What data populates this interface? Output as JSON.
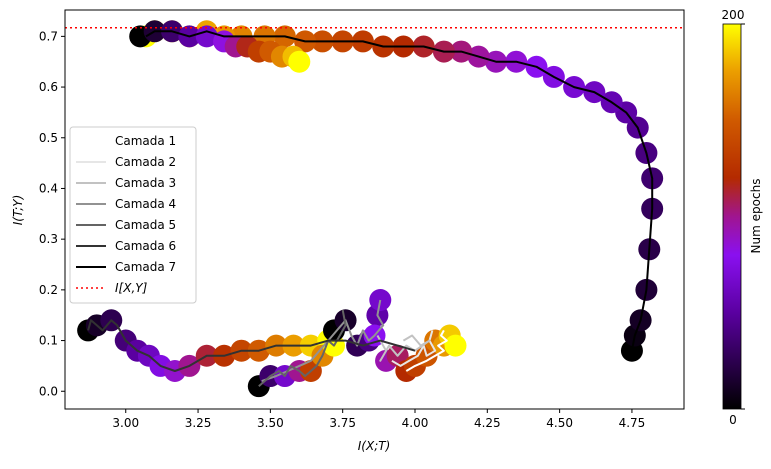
{
  "chart_data": {
    "type": "scatter",
    "title": "",
    "xlabel": "I(X;T)",
    "ylabel": "I(T;Y)",
    "xlim": [
      2.79,
      4.93
    ],
    "ylim": [
      -0.035,
      0.752
    ],
    "xticks": [
      3.0,
      3.25,
      3.5,
      3.75,
      4.0,
      4.25,
      4.5,
      4.75
    ],
    "xtick_labels": [
      "3.00",
      "3.25",
      "3.50",
      "3.75",
      "4.00",
      "4.25",
      "4.50",
      "4.75"
    ],
    "yticks": [
      0.0,
      0.1,
      0.2,
      0.3,
      0.4,
      0.5,
      0.6,
      0.7
    ],
    "ytick_labels": [
      "0.0",
      "0.1",
      "0.2",
      "0.3",
      "0.4",
      "0.5",
      "0.6",
      "0.7"
    ],
    "grid": false,
    "legend_position": "center-left",
    "hline": {
      "name": "I[X,Y]",
      "y": 0.717,
      "color": "#ff0000",
      "style": "dotted"
    },
    "colorbar": {
      "label": "Num epochs",
      "min": 0,
      "max": 200,
      "min_label": "0",
      "max_label": "200",
      "colormap": "gnuplot"
    },
    "series": [
      {
        "name": "Camada 1",
        "color": "#ffffff",
        "points": [
          [
            4.1,
            0.12
          ],
          [
            4.09,
            0.11
          ],
          [
            4.11,
            0.1
          ],
          [
            4.08,
            0.09
          ],
          [
            4.1,
            0.08
          ],
          [
            4.07,
            0.07
          ],
          [
            4.04,
            0.06
          ],
          [
            4.0,
            0.05
          ],
          [
            3.97,
            0.04
          ]
        ]
      },
      {
        "name": "Camada 2",
        "color": "#e6e6e6",
        "points": [
          [
            4.06,
            0.12
          ],
          [
            4.05,
            0.1
          ],
          [
            4.07,
            0.08
          ],
          [
            4.04,
            0.07
          ],
          [
            4.03,
            0.09
          ],
          [
            4.01,
            0.07
          ],
          [
            3.98,
            0.06
          ],
          [
            3.95,
            0.05
          ],
          [
            3.92,
            0.06
          ]
        ]
      },
      {
        "name": "Camada 3",
        "color": "#c2c2c2",
        "points": [
          [
            3.96,
            0.1
          ],
          [
            3.99,
            0.11
          ],
          [
            4.02,
            0.09
          ],
          [
            4.05,
            0.1
          ],
          [
            4.0,
            0.08
          ],
          [
            3.97,
            0.09
          ],
          [
            3.94,
            0.07
          ],
          [
            3.91,
            0.09
          ],
          [
            3.88,
            0.06
          ],
          [
            3.9,
            0.08
          ],
          [
            3.87,
            0.11
          ]
        ]
      },
      {
        "name": "Camada 4",
        "color": "#929292",
        "points": [
          [
            3.88,
            0.18
          ],
          [
            3.87,
            0.15
          ],
          [
            3.89,
            0.13
          ],
          [
            3.86,
            0.11
          ],
          [
            3.84,
            0.1
          ],
          [
            3.82,
            0.12
          ],
          [
            3.8,
            0.09
          ],
          [
            3.78,
            0.11
          ],
          [
            3.76,
            0.14
          ],
          [
            3.73,
            0.12
          ],
          [
            3.7,
            0.1
          ],
          [
            3.67,
            0.08
          ],
          [
            3.64,
            0.06
          ],
          [
            3.6,
            0.05
          ],
          [
            3.56,
            0.04
          ],
          [
            3.52,
            0.03
          ],
          [
            3.47,
            0.02
          ]
        ]
      },
      {
        "name": "Camada 5",
        "color": "#646464",
        "points": [
          [
            3.75,
            0.16
          ],
          [
            3.76,
            0.13
          ],
          [
            3.74,
            0.11
          ],
          [
            3.72,
            0.09
          ],
          [
            3.7,
            0.1
          ],
          [
            3.68,
            0.07
          ],
          [
            3.66,
            0.05
          ],
          [
            3.64,
            0.04
          ],
          [
            3.62,
            0.03
          ],
          [
            3.6,
            0.04
          ],
          [
            3.57,
            0.05
          ],
          [
            3.55,
            0.03
          ],
          [
            3.53,
            0.04
          ],
          [
            3.5,
            0.03
          ],
          [
            3.48,
            0.02
          ],
          [
            3.46,
            0.01
          ]
        ]
      },
      {
        "name": "Camada 6",
        "color": "#323232",
        "points": [
          [
            2.87,
            0.12
          ],
          [
            2.88,
            0.14
          ],
          [
            2.9,
            0.13
          ],
          [
            2.92,
            0.12
          ],
          [
            2.95,
            0.14
          ],
          [
            2.97,
            0.13
          ],
          [
            3.0,
            0.1
          ],
          [
            3.04,
            0.08
          ],
          [
            3.08,
            0.07
          ],
          [
            3.12,
            0.05
          ],
          [
            3.17,
            0.04
          ],
          [
            3.22,
            0.05
          ],
          [
            3.28,
            0.07
          ],
          [
            3.34,
            0.07
          ],
          [
            3.4,
            0.08
          ],
          [
            3.46,
            0.08
          ],
          [
            3.52,
            0.09
          ],
          [
            3.58,
            0.09
          ],
          [
            3.64,
            0.09
          ],
          [
            3.7,
            0.1
          ],
          [
            3.76,
            0.1
          ],
          [
            3.82,
            0.09
          ],
          [
            3.88,
            0.1
          ],
          [
            3.94,
            0.09
          ],
          [
            4.0,
            0.08
          ]
        ]
      },
      {
        "name": "Camada 7",
        "color": "#000000",
        "points": [
          [
            4.75,
            0.08
          ],
          [
            4.76,
            0.11
          ],
          [
            4.78,
            0.14
          ],
          [
            4.8,
            0.2
          ],
          [
            4.81,
            0.28
          ],
          [
            4.82,
            0.36
          ],
          [
            4.82,
            0.42
          ],
          [
            4.8,
            0.47
          ],
          [
            4.77,
            0.52
          ],
          [
            4.73,
            0.55
          ],
          [
            4.68,
            0.57
          ],
          [
            4.62,
            0.59
          ],
          [
            4.55,
            0.6
          ],
          [
            4.48,
            0.62
          ],
          [
            4.42,
            0.64
          ],
          [
            4.35,
            0.65
          ],
          [
            4.28,
            0.65
          ],
          [
            4.22,
            0.66
          ],
          [
            4.16,
            0.67
          ],
          [
            4.1,
            0.67
          ],
          [
            4.03,
            0.68
          ],
          [
            3.96,
            0.68
          ],
          [
            3.89,
            0.68
          ],
          [
            3.82,
            0.69
          ],
          [
            3.75,
            0.69
          ],
          [
            3.68,
            0.69
          ],
          [
            3.62,
            0.69
          ],
          [
            3.55,
            0.7
          ],
          [
            3.48,
            0.7
          ],
          [
            3.4,
            0.7
          ],
          [
            3.34,
            0.7
          ],
          [
            3.28,
            0.71
          ],
          [
            3.22,
            0.7
          ],
          [
            3.16,
            0.71
          ],
          [
            3.1,
            0.71
          ],
          [
            3.07,
            0.7
          ]
        ]
      }
    ],
    "markers": [
      {
        "series": "Camada 7",
        "points": [
          [
            4.75,
            0.08
          ],
          [
            4.76,
            0.11
          ],
          [
            4.78,
            0.14
          ],
          [
            4.8,
            0.2
          ],
          [
            4.81,
            0.28
          ],
          [
            4.82,
            0.36
          ],
          [
            4.82,
            0.42
          ],
          [
            4.8,
            0.47
          ],
          [
            4.77,
            0.52
          ],
          [
            4.73,
            0.55
          ],
          [
            4.68,
            0.57
          ],
          [
            4.62,
            0.59
          ],
          [
            4.55,
            0.6
          ],
          [
            4.48,
            0.62
          ],
          [
            4.42,
            0.64
          ],
          [
            4.35,
            0.65
          ],
          [
            4.28,
            0.65
          ],
          [
            4.22,
            0.66
          ],
          [
            4.16,
            0.67
          ],
          [
            4.1,
            0.67
          ],
          [
            4.03,
            0.68
          ],
          [
            3.96,
            0.68
          ],
          [
            3.89,
            0.68
          ],
          [
            3.82,
            0.69
          ],
          [
            3.75,
            0.69
          ],
          [
            3.68,
            0.69
          ],
          [
            3.62,
            0.69
          ],
          [
            3.55,
            0.7
          ],
          [
            3.48,
            0.7
          ],
          [
            3.4,
            0.7
          ],
          [
            3.34,
            0.7
          ],
          [
            3.28,
            0.71
          ],
          [
            3.22,
            0.7
          ],
          [
            3.16,
            0.71
          ],
          [
            3.1,
            0.71
          ],
          [
            3.07,
            0.7
          ]
        ]
      },
      {
        "series": "Camada 6",
        "points": [
          [
            3.05,
            0.7
          ],
          [
            3.1,
            0.71
          ],
          [
            3.16,
            0.71
          ],
          [
            3.22,
            0.7
          ],
          [
            3.28,
            0.7
          ],
          [
            3.34,
            0.69
          ],
          [
            3.38,
            0.68
          ],
          [
            3.42,
            0.68
          ],
          [
            3.46,
            0.67
          ],
          [
            3.5,
            0.67
          ],
          [
            3.54,
            0.66
          ],
          [
            3.58,
            0.66
          ],
          [
            3.6,
            0.65
          ]
        ]
      },
      {
        "series": "Camada 6",
        "points": [
          [
            2.87,
            0.12
          ],
          [
            2.9,
            0.13
          ],
          [
            2.95,
            0.14
          ],
          [
            3.0,
            0.1
          ],
          [
            3.04,
            0.08
          ],
          [
            3.08,
            0.07
          ],
          [
            3.12,
            0.05
          ],
          [
            3.17,
            0.04
          ],
          [
            3.22,
            0.05
          ],
          [
            3.28,
            0.07
          ],
          [
            3.34,
            0.07
          ],
          [
            3.4,
            0.08
          ],
          [
            3.46,
            0.08
          ],
          [
            3.52,
            0.09
          ],
          [
            3.58,
            0.09
          ],
          [
            3.64,
            0.09
          ],
          [
            3.7,
            0.1
          ]
        ]
      },
      {
        "series": "Camada 5",
        "points": [
          [
            3.46,
            0.01
          ],
          [
            3.5,
            0.03
          ],
          [
            3.55,
            0.03
          ],
          [
            3.6,
            0.04
          ],
          [
            3.64,
            0.04
          ],
          [
            3.68,
            0.07
          ],
          [
            3.72,
            0.09
          ]
        ]
      },
      {
        "series": "Camada 4",
        "points": [
          [
            3.72,
            0.12
          ],
          [
            3.76,
            0.14
          ],
          [
            3.8,
            0.09
          ],
          [
            3.84,
            0.1
          ],
          [
            3.87,
            0.15
          ],
          [
            3.88,
            0.18
          ],
          [
            3.86,
            0.11
          ],
          [
            3.9,
            0.06
          ],
          [
            3.94,
            0.07
          ],
          [
            3.97,
            0.04
          ],
          [
            4.0,
            0.05
          ],
          [
            4.04,
            0.07
          ],
          [
            4.07,
            0.1
          ],
          [
            4.1,
            0.09
          ],
          [
            4.12,
            0.11
          ],
          [
            4.14,
            0.09
          ]
        ]
      }
    ]
  }
}
